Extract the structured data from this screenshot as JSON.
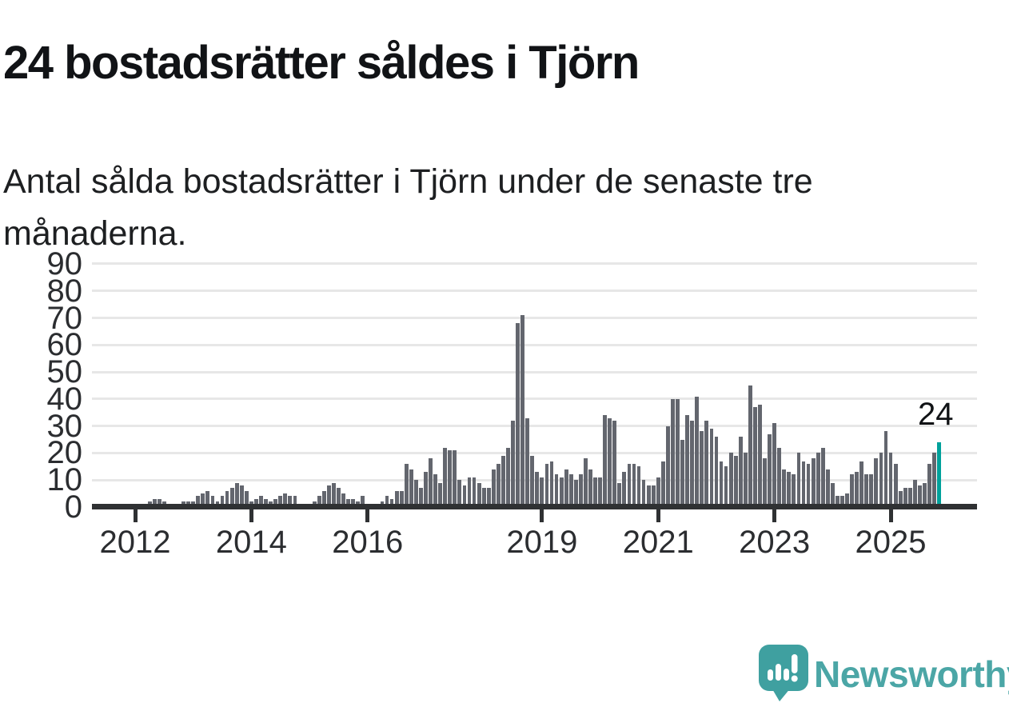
{
  "header": {
    "title": "24 bostadsrätter såldes i Tjörn",
    "subtitle": "Antal sålda bostadsrätter i Tjörn under de senaste tre månaderna."
  },
  "chart_data": {
    "type": "bar",
    "title": "24 bostadsrätter såldes i Tjörn",
    "subtitle": "Antal sålda bostadsrätter i Tjörn under de senaste tre månaderna.",
    "xlabel": "",
    "ylabel": "",
    "ylim": [
      0,
      90
    ],
    "yticks": [
      0,
      10,
      20,
      30,
      40,
      50,
      60,
      70,
      80,
      90
    ],
    "grid": true,
    "legend": "none",
    "x_unit": "month",
    "x_start": "2012-01",
    "x_end": "2025",
    "x_ticks": [
      {
        "label": "2012",
        "month_index": 0
      },
      {
        "label": "2014",
        "month_index": 24
      },
      {
        "label": "2016",
        "month_index": 48
      },
      {
        "label": "2019",
        "month_index": 84
      },
      {
        "label": "2021",
        "month_index": 108
      },
      {
        "label": "2023",
        "month_index": 132
      },
      {
        "label": "2025",
        "month_index": 156
      }
    ],
    "values": [
      0,
      0,
      1,
      2,
      3,
      3,
      2,
      1,
      1,
      1,
      2,
      2,
      2,
      4,
      5,
      6,
      4,
      2,
      4,
      6,
      7,
      9,
      8,
      6,
      2,
      3,
      4,
      3,
      2,
      3,
      4,
      5,
      4,
      4,
      1,
      1,
      1,
      2,
      4,
      6,
      8,
      9,
      7,
      5,
      3,
      3,
      2,
      4,
      1,
      1,
      1,
      2,
      4,
      3,
      6,
      6,
      16,
      14,
      10,
      7,
      13,
      18,
      12,
      9,
      22,
      21,
      21,
      10,
      8,
      11,
      11,
      9,
      7,
      7,
      14,
      16,
      19,
      22,
      32,
      68,
      71,
      33,
      19,
      13,
      11,
      16,
      17,
      12,
      11,
      14,
      12,
      10,
      12,
      18,
      14,
      11,
      11,
      34,
      33,
      32,
      9,
      13,
      16,
      16,
      15,
      10,
      8,
      8,
      11,
      17,
      30,
      40,
      40,
      25,
      34,
      32,
      41,
      28,
      32,
      29,
      26,
      17,
      15,
      20,
      19,
      26,
      20,
      45,
      37,
      38,
      18,
      27,
      31,
      22,
      14,
      13,
      12,
      20,
      17,
      16,
      18,
      20,
      22,
      14,
      9,
      4,
      4,
      5,
      12,
      13,
      17,
      12,
      12,
      18,
      20,
      28,
      20,
      16,
      6,
      7,
      7,
      10,
      8,
      9,
      16,
      20,
      24
    ],
    "bar_color": "#63666e",
    "highlight": {
      "index": 166,
      "value": 24,
      "label": "24",
      "color": "#00a19b"
    }
  },
  "footer": {
    "brand": "Newsworthy"
  },
  "colors": {
    "accent_teal": "#00a19b",
    "bar_gray": "#63666e",
    "brand_teal": "#4ba6a6",
    "axis": "#2f3133",
    "gridline": "#e7e7e7",
    "text": "#1a1a1a"
  }
}
